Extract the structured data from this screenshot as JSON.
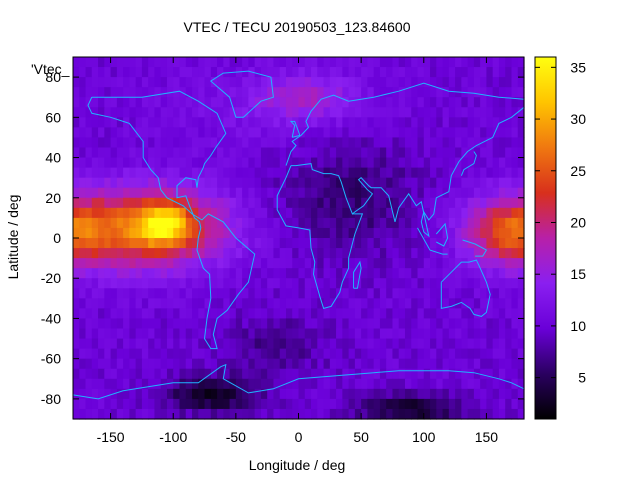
{
  "chart_data": {
    "type": "heatmap",
    "title": "VTEC / TECU 20190503_123.84600",
    "xlabel": "Longitude / deg",
    "ylabel": "Latitude / deg",
    "legend_entry": "'Vtec_",
    "xlim": [
      -180,
      180
    ],
    "ylim": [
      -90,
      90
    ],
    "xticks": [
      -150,
      -100,
      -50,
      0,
      50,
      100,
      150
    ],
    "yticks": [
      -80,
      -60,
      -40,
      -20,
      0,
      20,
      40,
      60,
      80
    ],
    "colorbar": {
      "min": 1,
      "max": 36,
      "ticks": [
        5,
        10,
        15,
        20,
        25,
        30,
        35
      ]
    },
    "palette": [
      "#000000",
      "#2a0060",
      "#6a00d8",
      "#8a1ff0",
      "#b820a8",
      "#d8301c",
      "#f07810",
      "#ffc400",
      "#ffff10"
    ],
    "grid": false,
    "overlay": "coastlines",
    "coastline_color": "#1fb4ff",
    "features": [
      {
        "kind": "background",
        "value": 10
      },
      {
        "kind": "peak",
        "lon": -107,
        "lat": 7,
        "value": 36,
        "note": "equatorial anomaly maximum"
      },
      {
        "kind": "band",
        "lon": -120,
        "lat": 5,
        "value": 25
      },
      {
        "kind": "band",
        "lon": 170,
        "lat": 3,
        "value": 22
      },
      {
        "kind": "low",
        "lon": -70,
        "lat": -78,
        "value": 2
      },
      {
        "kind": "low",
        "lon": 90,
        "lat": -85,
        "value": 2
      },
      {
        "kind": "low",
        "lon": 40,
        "lat": 20,
        "value": 6
      }
    ]
  }
}
